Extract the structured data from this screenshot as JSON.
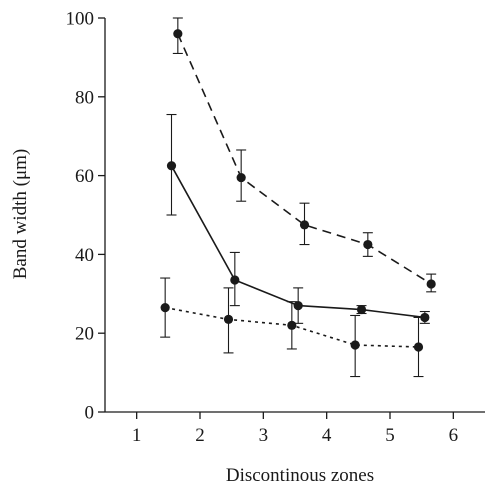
{
  "chart_data": {
    "type": "line",
    "title": "",
    "xlabel": "Discontinous zones",
    "ylabel": "Band width (μm)",
    "xlim": [
      0.5,
      6.5
    ],
    "ylim": [
      0,
      100
    ],
    "xticks": [
      1,
      2,
      3,
      4,
      5,
      6
    ],
    "yticks": [
      0,
      20,
      40,
      60,
      80,
      100
    ],
    "grid": false,
    "legend": "none",
    "series": [
      {
        "line_style": "dashed",
        "x": [
          1.65,
          2.65,
          3.65,
          4.65,
          5.65
        ],
        "y": [
          96,
          59.5,
          47.5,
          42.5,
          32.5
        ],
        "err_low": [
          91,
          53.5,
          42.5,
          39.5,
          30.5
        ],
        "err_high": [
          100,
          66.5,
          53,
          45.5,
          35
        ]
      },
      {
        "line_style": "solid",
        "x": [
          1.55,
          2.55,
          3.55,
          4.55,
          5.55
        ],
        "y": [
          62.5,
          33.5,
          27,
          26,
          24
        ],
        "err_low": [
          50,
          27,
          22.5,
          25,
          22.5
        ],
        "err_high": [
          75.5,
          40.5,
          31.5,
          27,
          25.5
        ]
      },
      {
        "line_style": "dotted",
        "x": [
          1.45,
          2.45,
          3.45,
          4.45,
          5.45
        ],
        "y": [
          26.5,
          23.5,
          22,
          17,
          16.5
        ],
        "err_low": [
          19,
          15,
          16,
          9,
          9
        ],
        "err_high": [
          34,
          31.5,
          28,
          24.5,
          24
        ]
      }
    ]
  }
}
